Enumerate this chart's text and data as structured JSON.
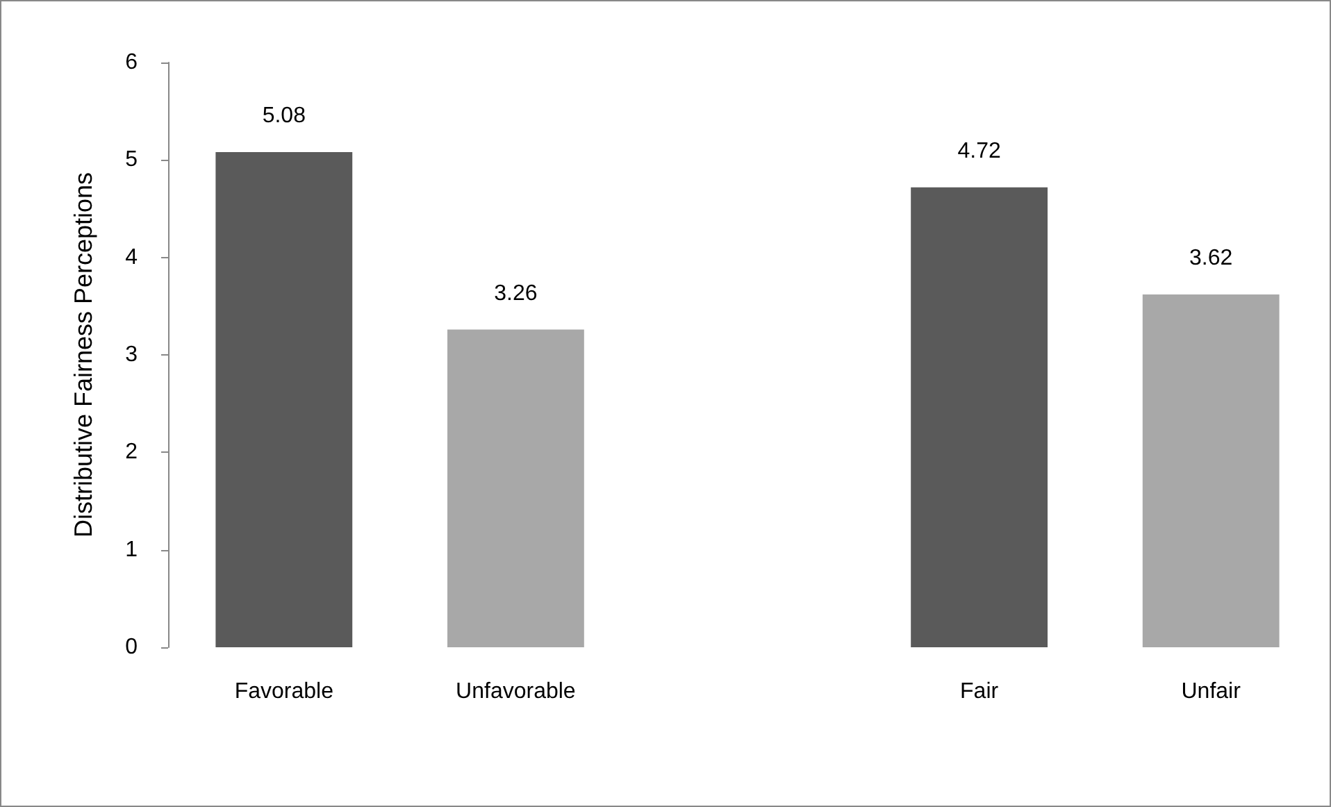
{
  "chart_data": {
    "type": "bar",
    "ylabel": "Distributive Fairness Perceptions",
    "categories": [
      "Favorable",
      "Unfavorable",
      null,
      "Fair",
      "Unfair"
    ],
    "values": [
      5.08,
      3.26,
      null,
      4.72,
      3.62
    ],
    "colors": [
      "#5a5a5a",
      "#a8a8a8",
      null,
      "#5a5a5a",
      "#a8a8a8"
    ],
    "ylim": [
      0,
      6
    ],
    "yticks": [
      0,
      1,
      2,
      3,
      4,
      5,
      6
    ],
    "grid": false,
    "data_labels": true
  }
}
